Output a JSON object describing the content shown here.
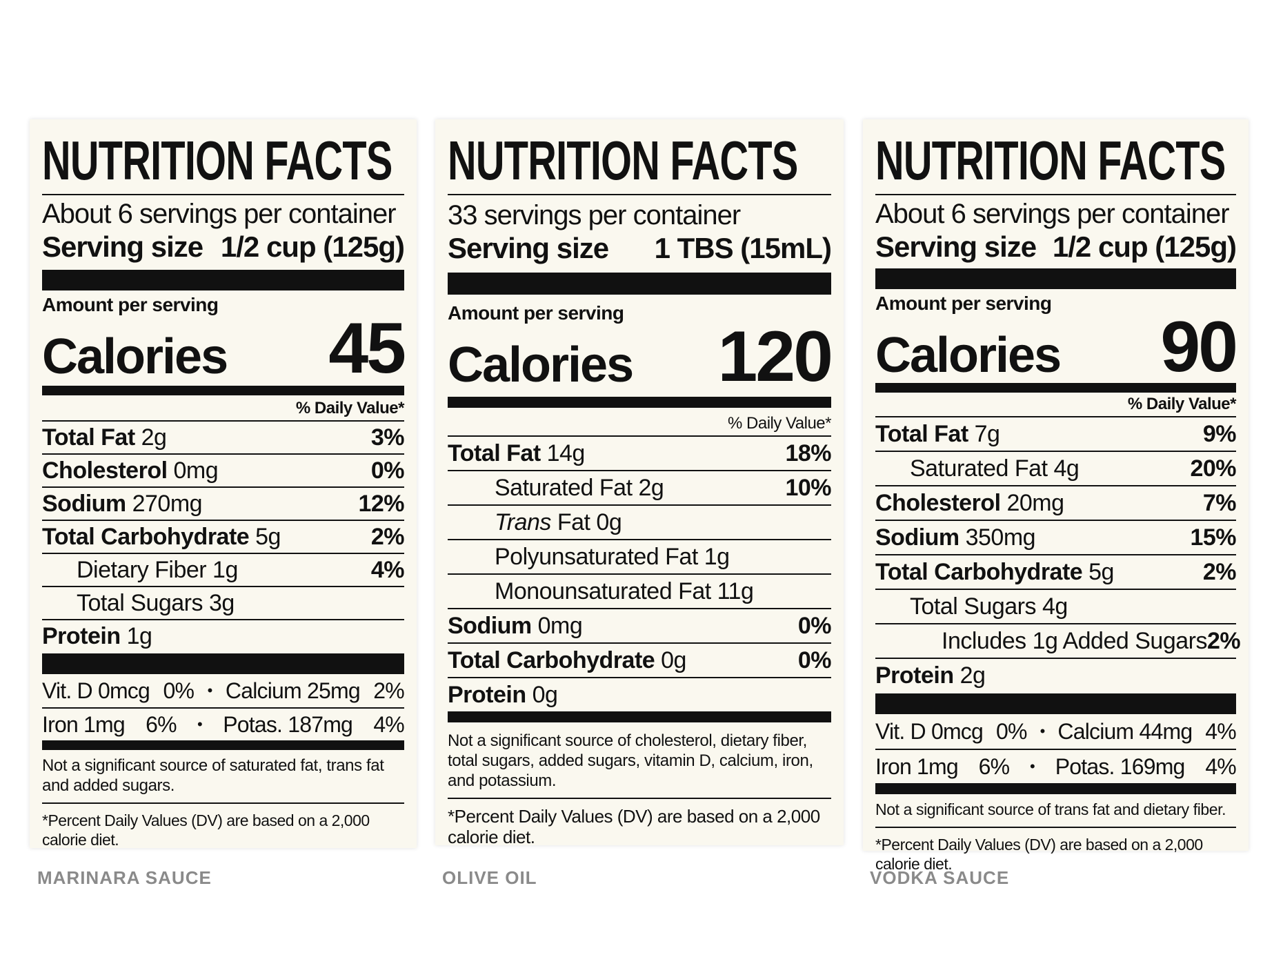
{
  "labels": [
    {
      "title": "NUTRITION FACTS",
      "servings": "About 6 servings per container",
      "serving_size_label": "Serving size",
      "serving_size_value": "1/2 cup (125g)",
      "amount_per_serving": "Amount per serving",
      "calories_label": "Calories",
      "calories_value": "45",
      "daily_value_header": "% Daily Value*",
      "rows": [
        {
          "bold": "Total Fat",
          "rest": " 2g",
          "pct": "3%"
        },
        {
          "bold": "Cholesterol",
          "rest": " 0mg",
          "pct": "0%"
        },
        {
          "bold": "Sodium",
          "rest": " 270mg",
          "pct": "12%"
        },
        {
          "bold": "Total Carbohydrate",
          "rest": " 5g",
          "pct": "2%"
        },
        {
          "text": "Dietary Fiber 1g",
          "pct": "4%"
        },
        {
          "text": "Total Sugars 3g",
          "pct": ""
        },
        {
          "bold": "Protein",
          "rest": " 1g",
          "pct": ""
        }
      ],
      "vitamins": [
        {
          "a_name": "Vit. D 0mcg",
          "a_pct": "0%",
          "sep": "•",
          "b_name": "Calcium 25mg",
          "b_pct": "2%"
        },
        {
          "a_name": "Iron 1mg",
          "a_pct": "6%",
          "sep": "•",
          "b_name": "Potas. 187mg",
          "b_pct": "4%"
        }
      ],
      "note": "Not a significant source of saturated fat, trans fat and added sugars.",
      "footnote": "*Percent Daily Values (DV) are based on a 2,000 calorie diet.",
      "caption": "MARINARA SAUCE"
    },
    {
      "title": "NUTRITION FACTS",
      "servings": "33 servings per container",
      "serving_size_label": "Serving size",
      "serving_size_value": "1 TBS (15mL)",
      "amount_per_serving": "Amount per serving",
      "calories_label": "Calories",
      "calories_value": "120",
      "daily_value_header": "% Daily Value*",
      "rows": [
        {
          "bold": "Total Fat",
          "rest": " 14g",
          "pct": "18%"
        },
        {
          "text": "Saturated Fat 2g",
          "pct": "10%"
        },
        {
          "italic": "Trans",
          "rest": " Fat 0g",
          "pct": ""
        },
        {
          "text": "Polyunsaturated Fat 1g",
          "pct": ""
        },
        {
          "text": "Monounsaturated Fat 11g",
          "pct": ""
        },
        {
          "bold": "Sodium",
          "rest": " 0mg",
          "pct": "0%"
        },
        {
          "bold": "Total Carbohydrate",
          "rest": " 0g",
          "pct": "0%"
        },
        {
          "bold": "Protein",
          "rest": " 0g",
          "pct": ""
        }
      ],
      "note": "Not a significant source of cholesterol, dietary fiber, total sugars, added sugars, vitamin D, calcium, iron, and potassium.",
      "footnote": "*Percent Daily Values (DV) are based on a 2,000 calorie diet.",
      "caption": "OLIVE OIL"
    },
    {
      "title": "NUTRITION FACTS",
      "servings": "About 6 servings per container",
      "serving_size_label": "Serving size",
      "serving_size_value": "1/2 cup (125g)",
      "amount_per_serving": "Amount per serving",
      "calories_label": "Calories",
      "calories_value": "90",
      "daily_value_header": "% Daily Value*",
      "rows": [
        {
          "bold": "Total Fat",
          "rest": " 7g",
          "pct": "9%"
        },
        {
          "text": "Saturated Fat 4g",
          "pct": "20%"
        },
        {
          "bold": "Cholesterol",
          "rest": " 20mg",
          "pct": "7%"
        },
        {
          "bold": "Sodium",
          "rest": " 350mg",
          "pct": "15%"
        },
        {
          "bold": "Total Carbohydrate",
          "rest": " 5g",
          "pct": "2%"
        },
        {
          "text": "Total Sugars 4g",
          "pct": ""
        },
        {
          "text": "Includes 1g Added Sugars",
          "pct": "2%"
        },
        {
          "bold": "Protein",
          "rest": " 2g",
          "pct": ""
        }
      ],
      "vitamins": [
        {
          "a_name": "Vit. D 0mcg",
          "a_pct": "0%",
          "sep": "•",
          "b_name": "Calcium 44mg",
          "b_pct": "4%"
        },
        {
          "a_name": "Iron 1mg",
          "a_pct": "6%",
          "sep": "•",
          "b_name": "Potas. 169mg",
          "b_pct": "4%"
        }
      ],
      "note": "Not a significant source of trans fat and dietary fiber.",
      "footnote": "*Percent Daily Values (DV) are based on a 2,000 calorie diet.",
      "caption": "VODKA SAUCE"
    }
  ],
  "colors": {
    "label_bg": "#faf8ef",
    "ink": "#111111",
    "caption": "#8a8a8a"
  }
}
